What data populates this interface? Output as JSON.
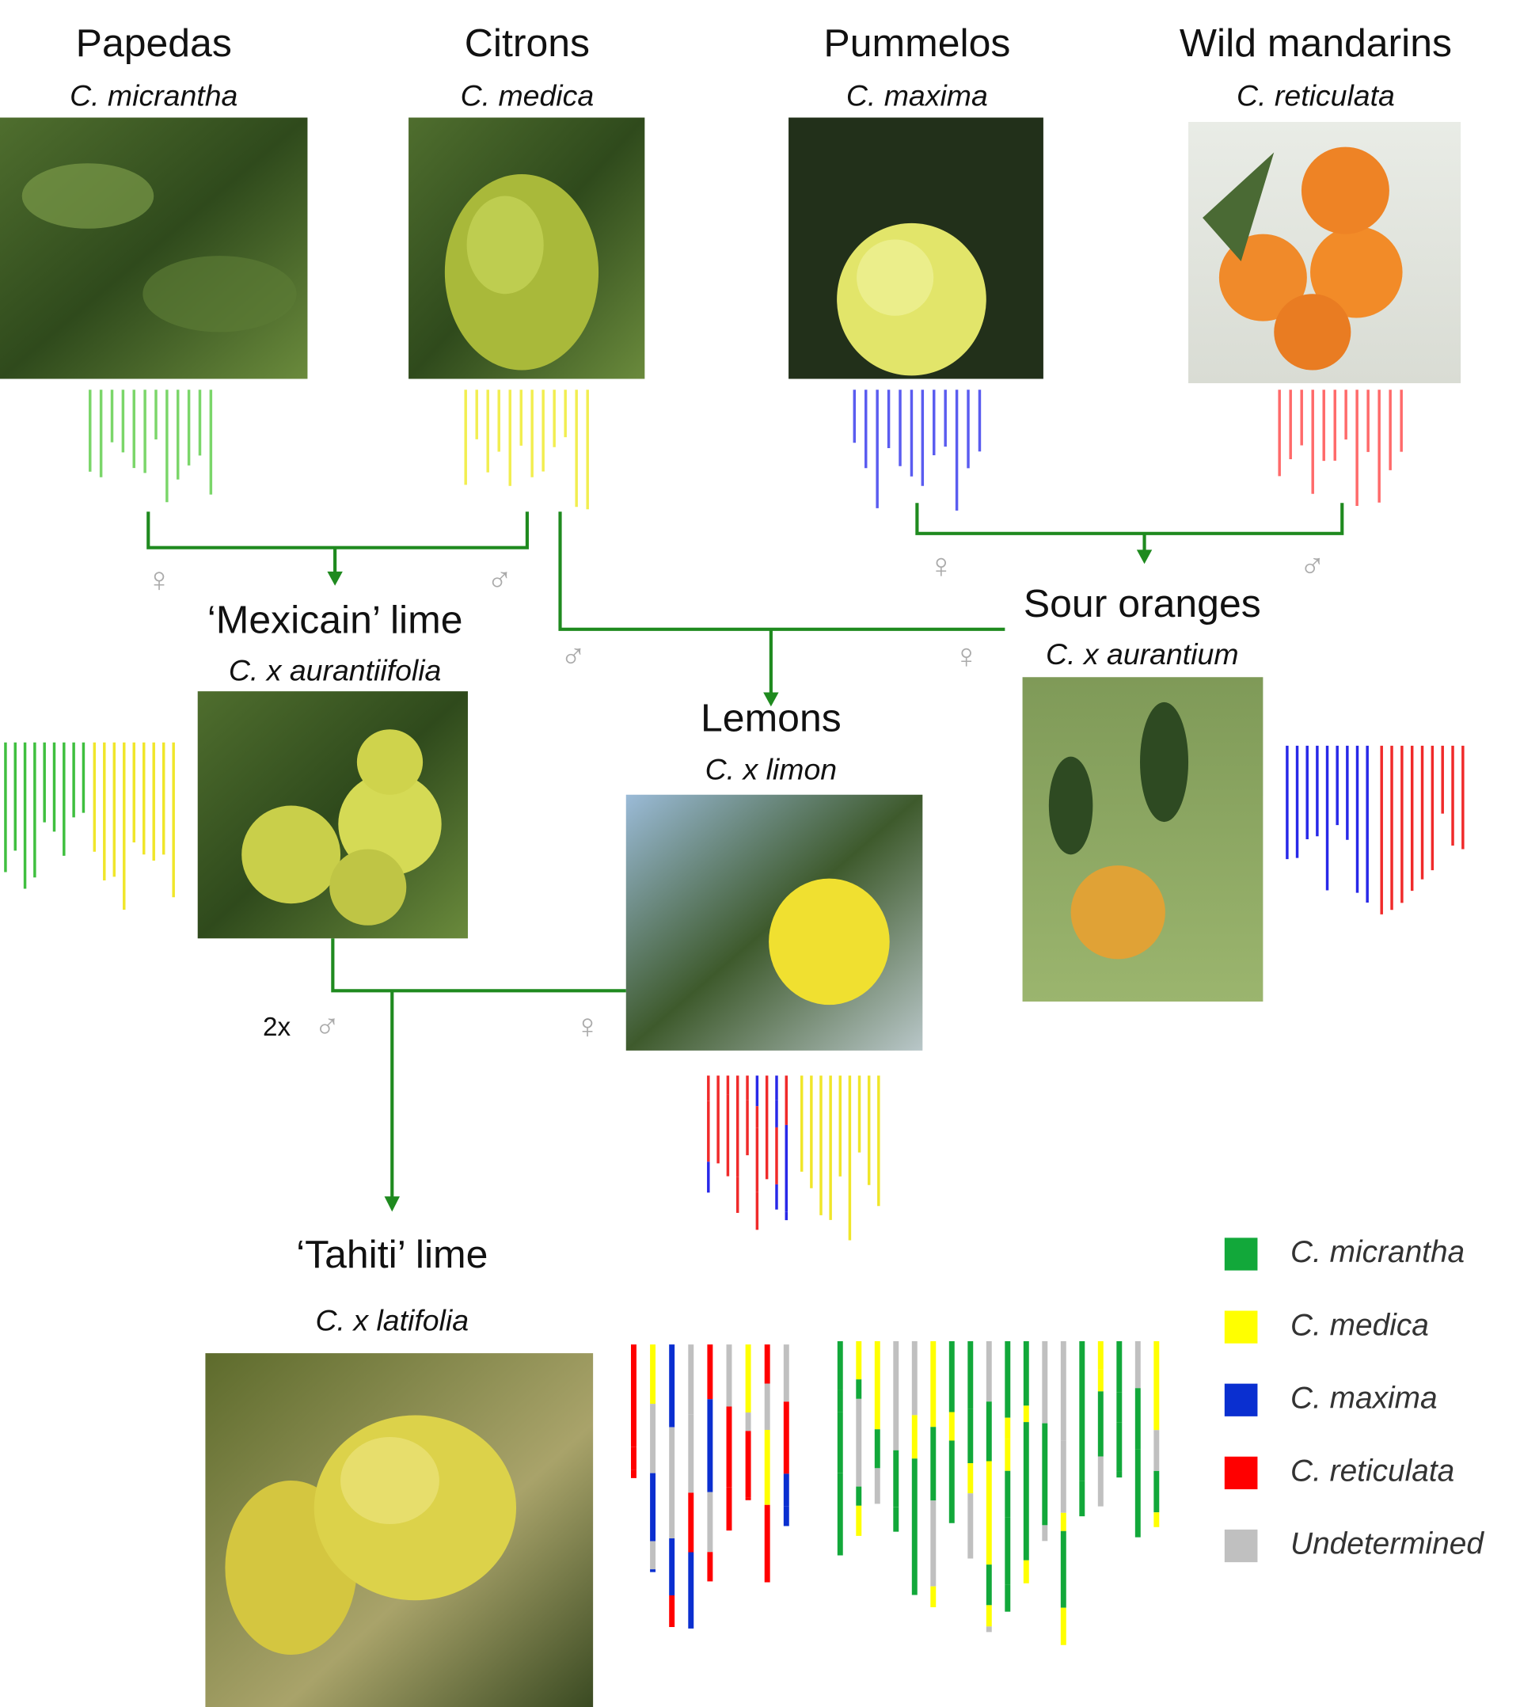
{
  "nodes": [
    {
      "title": "Papedas",
      "species": "C. micrantha"
    },
    {
      "title": "Citrons",
      "species": "C. medica"
    },
    {
      "title": "Pummelos",
      "species": "C. maxima"
    },
    {
      "title": "Wild mandarins",
      "species": "C. reticulata"
    },
    {
      "title": "‘Mexicain’ lime",
      "species": "C. x aurantiifolia"
    },
    {
      "title": "Sour oranges",
      "species": "C. x aurantium"
    },
    {
      "title": "Lemons",
      "species": "C. x limon"
    },
    {
      "title": "‘Tahiti’ lime",
      "species": "C. x latifolia"
    }
  ],
  "cross_labels": {
    "female": "♀",
    "male": "♂",
    "double": "2x"
  },
  "legend": [
    "C. micrantha",
    "C. medica",
    "C. maxima",
    "C. reticulata",
    "Undetermined"
  ]
}
